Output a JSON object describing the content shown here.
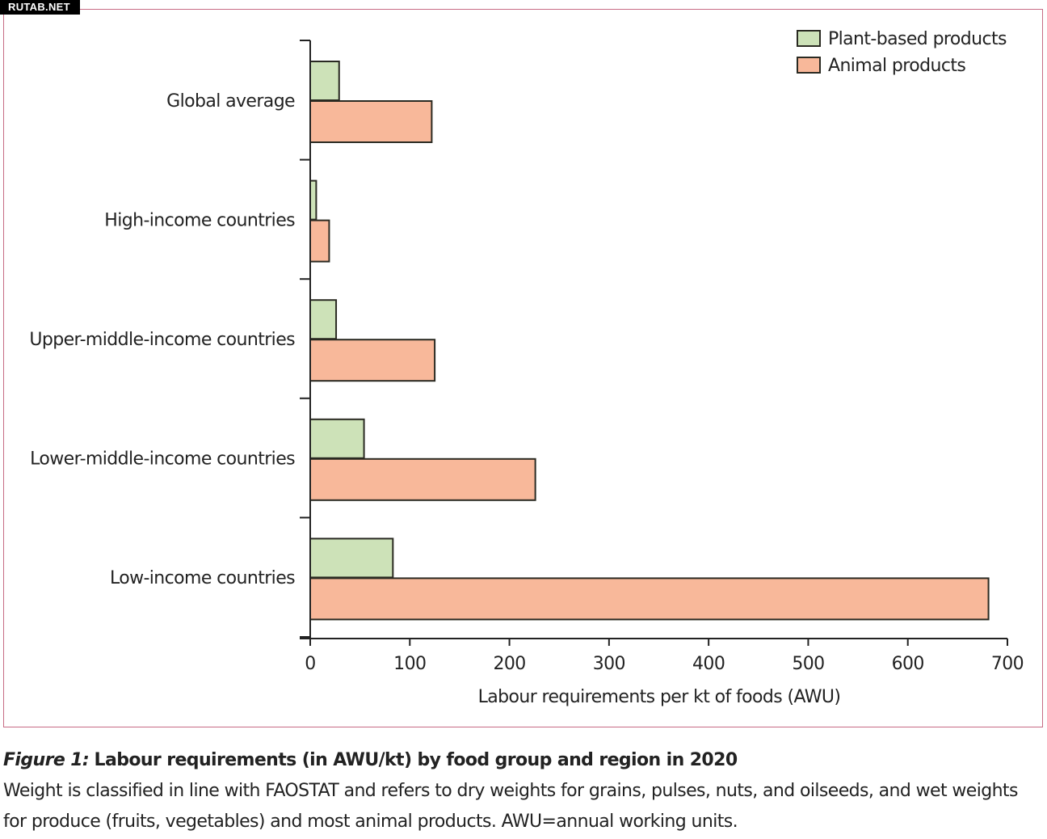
{
  "watermark": "RUTAB.NET",
  "chart_data": {
    "type": "bar",
    "orientation": "horizontal",
    "categories": [
      "Global average",
      "High-income countries",
      "Upper-middle-income countries",
      "Lower-middle-income countries",
      "Low-income countries"
    ],
    "series": [
      {
        "name": "Plant-based products",
        "color": "#cde2b8",
        "values": [
          29,
          6,
          26,
          54,
          83
        ]
      },
      {
        "name": "Animal products",
        "color": "#f8b89a",
        "values": [
          122,
          19,
          125,
          226,
          681
        ]
      }
    ],
    "xlabel": "Labour requirements per kt of foods (AWU)",
    "xlim": [
      0,
      700
    ],
    "xticks": [
      "0",
      "100",
      "200",
      "300",
      "400",
      "500",
      "600",
      "700"
    ],
    "legend": "top-right",
    "grid": false
  },
  "caption": {
    "label": "Figure 1:",
    "title": "Labour requirements (in AWU/kt) by food group and region in 2020",
    "text": "Weight is classified in line with FAOSTAT and refers to dry weights for grains, pulses, nuts, and oilseeds, and wet weights for produce (fruits, vegetables) and most animal products. AWU=annual working units."
  }
}
